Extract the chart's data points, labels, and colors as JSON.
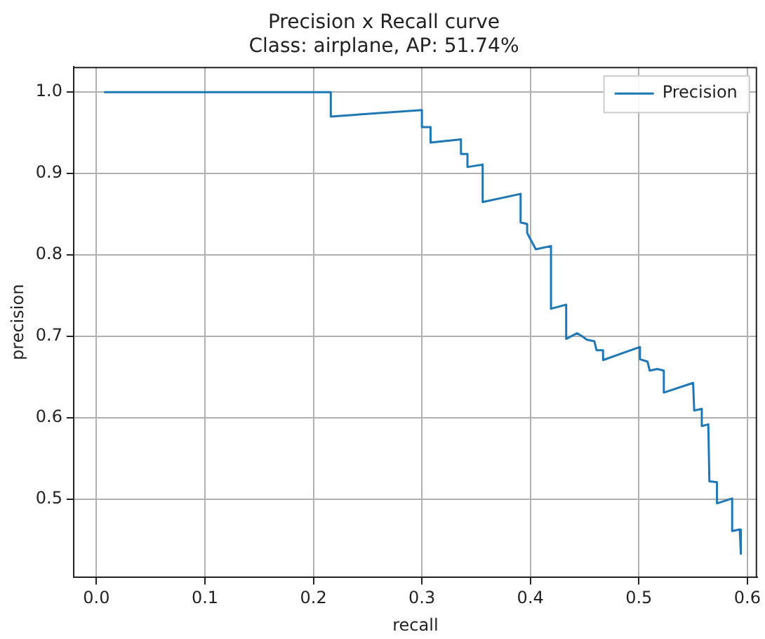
{
  "chart_data": {
    "type": "line",
    "title": "Precision x Recall curve",
    "subtitle": "Class: airplane, AP: 51.74%",
    "xlabel": "recall",
    "ylabel": "precision",
    "series": [
      {
        "name": "Precision",
        "color": "#1f77b4",
        "x": [
          0.007,
          0.216,
          0.216,
          0.3,
          0.3,
          0.308,
          0.308,
          0.336,
          0.336,
          0.342,
          0.342,
          0.356,
          0.356,
          0.391,
          0.391,
          0.397,
          0.397,
          0.405,
          0.405,
          0.419,
          0.419,
          0.433,
          0.433,
          0.443,
          0.448,
          0.452,
          0.459,
          0.461,
          0.467,
          0.467,
          0.501,
          0.501,
          0.508,
          0.51,
          0.517,
          0.523,
          0.523,
          0.55,
          0.551,
          0.558,
          0.558,
          0.564,
          0.565,
          0.572,
          0.572,
          0.586,
          0.586,
          0.593,
          0.594
        ],
        "values": [
          1.0,
          1.0,
          0.97,
          0.978,
          0.957,
          0.957,
          0.938,
          0.942,
          0.924,
          0.924,
          0.908,
          0.911,
          0.865,
          0.875,
          0.84,
          0.838,
          0.827,
          0.807,
          0.807,
          0.811,
          0.734,
          0.739,
          0.697,
          0.704,
          0.7,
          0.696,
          0.694,
          0.683,
          0.683,
          0.671,
          0.687,
          0.672,
          0.669,
          0.658,
          0.66,
          0.658,
          0.631,
          0.643,
          0.609,
          0.611,
          0.59,
          0.592,
          0.522,
          0.521,
          0.495,
          0.501,
          0.461,
          0.463,
          0.433
        ]
      }
    ],
    "xlim": [
      -0.021,
      0.609
    ],
    "ylim": [
      0.404,
      1.031
    ],
    "xticks": [
      {
        "value": 0,
        "label": "0.0"
      },
      0.1,
      0.2,
      0.3,
      0.4,
      0.5,
      0.6
    ],
    "yticks": [
      0.5,
      0.6,
      0.7,
      0.8,
      0.9,
      {
        "value": 1,
        "label": "1.0"
      }
    ],
    "grid": true,
    "legend": "top right",
    "marker": "none",
    "line_style": "solid"
  }
}
